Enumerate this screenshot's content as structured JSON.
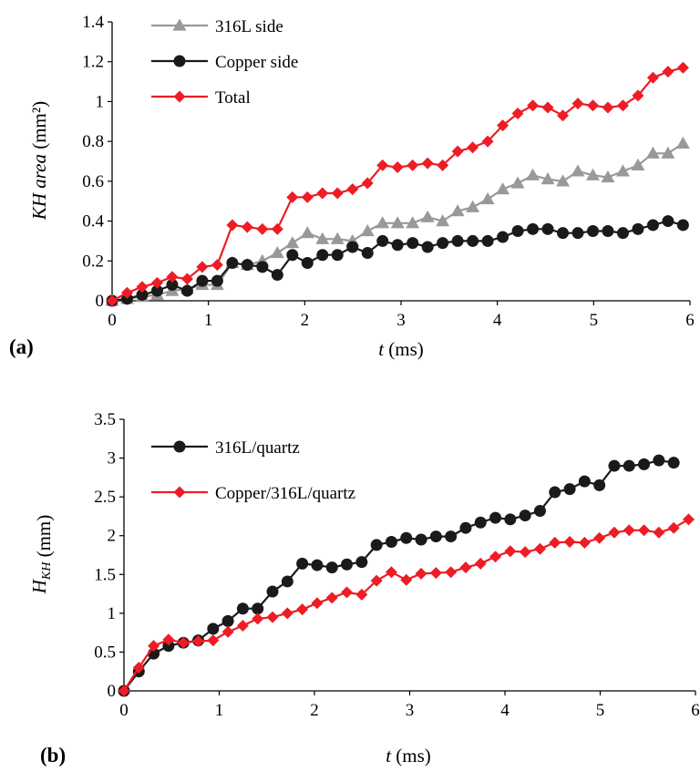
{
  "chart_data": [
    {
      "type": "line",
      "panel_label": "(a)",
      "xlabel_italic": "t",
      "xlabel_unit": " (ms)",
      "ylabel_italic": "KH area",
      "ylabel_unit": "  (mm²)",
      "xlim": [
        0,
        6
      ],
      "ylim": [
        0,
        1.4
      ],
      "xticks": [
        0,
        1,
        2,
        3,
        4,
        5,
        6
      ],
      "xtick_labels": [
        "0",
        "1",
        "2",
        "3",
        "4",
        "5",
        "6"
      ],
      "yticks": [
        0,
        0.2,
        0.4,
        0.6,
        0.8,
        1,
        1.2,
        1.4
      ],
      "ytick_labels": [
        "0",
        "0.2",
        "0.4",
        "0.6",
        "0.8",
        "1",
        "1.2",
        "1.4"
      ],
      "grid": false,
      "legend_position": "top-left",
      "series": [
        {
          "name": "316L side",
          "color": "#999999",
          "marker": "triangle",
          "x": [
            0,
            0.156,
            0.312,
            0.468,
            0.624,
            0.78,
            0.936,
            1.092,
            1.248,
            1.404,
            1.56,
            1.716,
            1.872,
            2.028,
            2.184,
            2.34,
            2.496,
            2.652,
            2.808,
            2.964,
            3.12,
            3.276,
            3.432,
            3.588,
            3.744,
            3.9,
            4.056,
            4.212,
            4.368,
            4.524,
            4.68,
            4.836,
            4.992,
            5.148,
            5.304,
            5.46,
            5.616,
            5.772,
            5.928
          ],
          "y": [
            0,
            0.01,
            0.02,
            0.03,
            0.05,
            0.06,
            0.08,
            0.08,
            0.19,
            0.18,
            0.2,
            0.24,
            0.29,
            0.34,
            0.31,
            0.31,
            0.3,
            0.35,
            0.39,
            0.39,
            0.39,
            0.42,
            0.4,
            0.45,
            0.47,
            0.51,
            0.56,
            0.59,
            0.63,
            0.61,
            0.6,
            0.65,
            0.63,
            0.62,
            0.65,
            0.68,
            0.74,
            0.74,
            0.79
          ]
        },
        {
          "name": "Copper side",
          "color": "#1a1a1a",
          "marker": "circle",
          "x": [
            0,
            0.156,
            0.312,
            0.468,
            0.624,
            0.78,
            0.936,
            1.092,
            1.248,
            1.404,
            1.56,
            1.716,
            1.872,
            2.028,
            2.184,
            2.34,
            2.496,
            2.652,
            2.808,
            2.964,
            3.12,
            3.276,
            3.432,
            3.588,
            3.744,
            3.9,
            4.056,
            4.212,
            4.368,
            4.524,
            4.68,
            4.836,
            4.992,
            5.148,
            5.304,
            5.46,
            5.616,
            5.772,
            5.928
          ],
          "y": [
            0,
            0.01,
            0.03,
            0.05,
            0.08,
            0.05,
            0.1,
            0.1,
            0.19,
            0.18,
            0.17,
            0.13,
            0.23,
            0.19,
            0.23,
            0.23,
            0.27,
            0.24,
            0.3,
            0.28,
            0.29,
            0.27,
            0.29,
            0.3,
            0.3,
            0.3,
            0.32,
            0.35,
            0.36,
            0.36,
            0.34,
            0.34,
            0.35,
            0.35,
            0.34,
            0.36,
            0.38,
            0.4,
            0.38
          ]
        },
        {
          "name": "Total",
          "color": "#ee1c25",
          "marker": "diamond",
          "x": [
            0,
            0.156,
            0.312,
            0.468,
            0.624,
            0.78,
            0.936,
            1.092,
            1.248,
            1.404,
            1.56,
            1.716,
            1.872,
            2.028,
            2.184,
            2.34,
            2.496,
            2.652,
            2.808,
            2.964,
            3.12,
            3.276,
            3.432,
            3.588,
            3.744,
            3.9,
            4.056,
            4.212,
            4.368,
            4.524,
            4.68,
            4.836,
            4.992,
            5.148,
            5.304,
            5.46,
            5.616,
            5.772,
            5.928
          ],
          "y": [
            0,
            0.04,
            0.07,
            0.09,
            0.12,
            0.11,
            0.17,
            0.18,
            0.38,
            0.37,
            0.36,
            0.36,
            0.52,
            0.52,
            0.54,
            0.54,
            0.56,
            0.59,
            0.68,
            0.67,
            0.68,
            0.69,
            0.68,
            0.75,
            0.77,
            0.8,
            0.88,
            0.94,
            0.98,
            0.97,
            0.93,
            0.99,
            0.98,
            0.97,
            0.98,
            1.03,
            1.12,
            1.15,
            1.17
          ]
        }
      ]
    },
    {
      "type": "line",
      "panel_label": "(b)",
      "xlabel_italic": "t",
      "xlabel_unit": " (ms)",
      "ylabel_main": "H",
      "ylabel_sub": "KH",
      "ylabel_unit": "  (mm)",
      "xlim": [
        0,
        6
      ],
      "ylim": [
        0,
        3.5
      ],
      "xticks": [
        0,
        1,
        2,
        3,
        4,
        5,
        6
      ],
      "xtick_labels": [
        "0",
        "1",
        "2",
        "3",
        "4",
        "5",
        "6"
      ],
      "yticks": [
        0,
        0.5,
        1,
        1.5,
        2,
        2.5,
        3,
        3.5
      ],
      "ytick_labels": [
        "0",
        "0.5",
        "1",
        "1.5",
        "2",
        "2.5",
        "3",
        "3.5"
      ],
      "grid": false,
      "legend_position": "top-left",
      "series": [
        {
          "name": "316L/quartz",
          "color": "#1a1a1a",
          "marker": "circle",
          "x": [
            0,
            0.156,
            0.312,
            0.468,
            0.624,
            0.78,
            0.936,
            1.092,
            1.248,
            1.404,
            1.56,
            1.716,
            1.872,
            2.028,
            2.184,
            2.34,
            2.496,
            2.652,
            2.808,
            2.964,
            3.12,
            3.276,
            3.432,
            3.588,
            3.744,
            3.9,
            4.056,
            4.212,
            4.368,
            4.524,
            4.68,
            4.836,
            4.992,
            5.148,
            5.304,
            5.46,
            5.616,
            5.772
          ],
          "y": [
            0,
            0.25,
            0.48,
            0.58,
            0.62,
            0.65,
            0.8,
            0.9,
            1.06,
            1.06,
            1.28,
            1.41,
            1.64,
            1.62,
            1.59,
            1.63,
            1.66,
            1.88,
            1.92,
            1.97,
            1.95,
            1.99,
            1.99,
            2.1,
            2.17,
            2.23,
            2.21,
            2.26,
            2.32,
            2.56,
            2.6,
            2.7,
            2.65,
            2.9,
            2.9,
            2.92,
            2.97,
            2.94
          ]
        },
        {
          "name": "Copper/316L/quartz",
          "color": "#ee1c25",
          "marker": "diamond",
          "x": [
            0,
            0.156,
            0.312,
            0.468,
            0.624,
            0.78,
            0.936,
            1.092,
            1.248,
            1.404,
            1.56,
            1.716,
            1.872,
            2.028,
            2.184,
            2.34,
            2.496,
            2.652,
            2.808,
            2.964,
            3.12,
            3.276,
            3.432,
            3.588,
            3.744,
            3.9,
            4.056,
            4.212,
            4.368,
            4.524,
            4.68,
            4.836,
            4.992,
            5.148,
            5.304,
            5.46,
            5.616,
            5.772,
            5.928
          ],
          "y": [
            0,
            0.3,
            0.58,
            0.66,
            0.62,
            0.64,
            0.65,
            0.76,
            0.84,
            0.93,
            0.95,
            1.0,
            1.05,
            1.13,
            1.2,
            1.27,
            1.24,
            1.42,
            1.53,
            1.43,
            1.51,
            1.52,
            1.53,
            1.59,
            1.64,
            1.73,
            1.8,
            1.79,
            1.83,
            1.91,
            1.92,
            1.91,
            1.97,
            2.04,
            2.07,
            2.07,
            2.04,
            2.1,
            2.21
          ]
        }
      ]
    }
  ]
}
